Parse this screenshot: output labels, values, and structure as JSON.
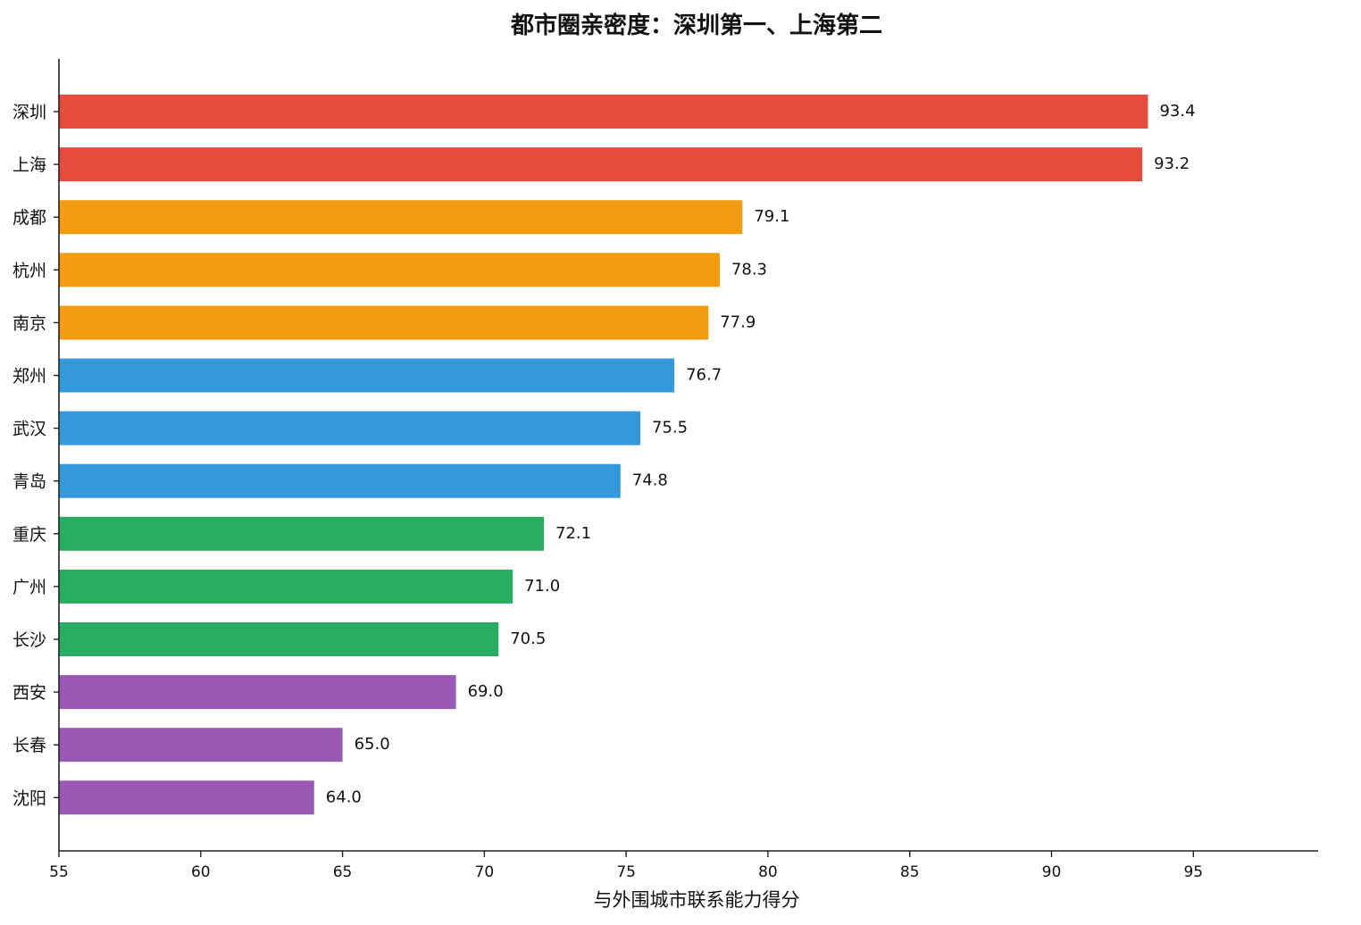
{
  "chart_data": {
    "type": "bar",
    "orientation": "horizontal",
    "title": "都市圈亲密度：深圳第一、上海第二",
    "xlabel": "与外围城市联系能力得分",
    "ylabel": "",
    "xlim": [
      55,
      99.4
    ],
    "xticks": [
      55,
      60,
      65,
      70,
      75,
      80,
      85,
      90,
      95
    ],
    "grid": false,
    "categories": [
      "深圳",
      "上海",
      "成都",
      "杭州",
      "南京",
      "郑州",
      "武汉",
      "青岛",
      "重庆",
      "广州",
      "长沙",
      "西安",
      "长春",
      "沈阳"
    ],
    "values": [
      93.4,
      93.2,
      79.1,
      78.3,
      77.9,
      76.7,
      75.5,
      74.8,
      72.1,
      71.0,
      70.5,
      69.0,
      65.0,
      64.0
    ],
    "value_labels": [
      "93.4",
      "93.2",
      "79.1",
      "78.3",
      "77.9",
      "76.7",
      "75.5",
      "74.8",
      "72.1",
      "71.0",
      "70.5",
      "69.0",
      "65.0",
      "64.0"
    ],
    "colors": [
      "#e74c3c",
      "#e74c3c",
      "#f39c12",
      "#f39c12",
      "#f39c12",
      "#3498db",
      "#3498db",
      "#3498db",
      "#27ae60",
      "#27ae60",
      "#27ae60",
      "#9b59b6",
      "#9b59b6",
      "#9b59b6"
    ]
  }
}
